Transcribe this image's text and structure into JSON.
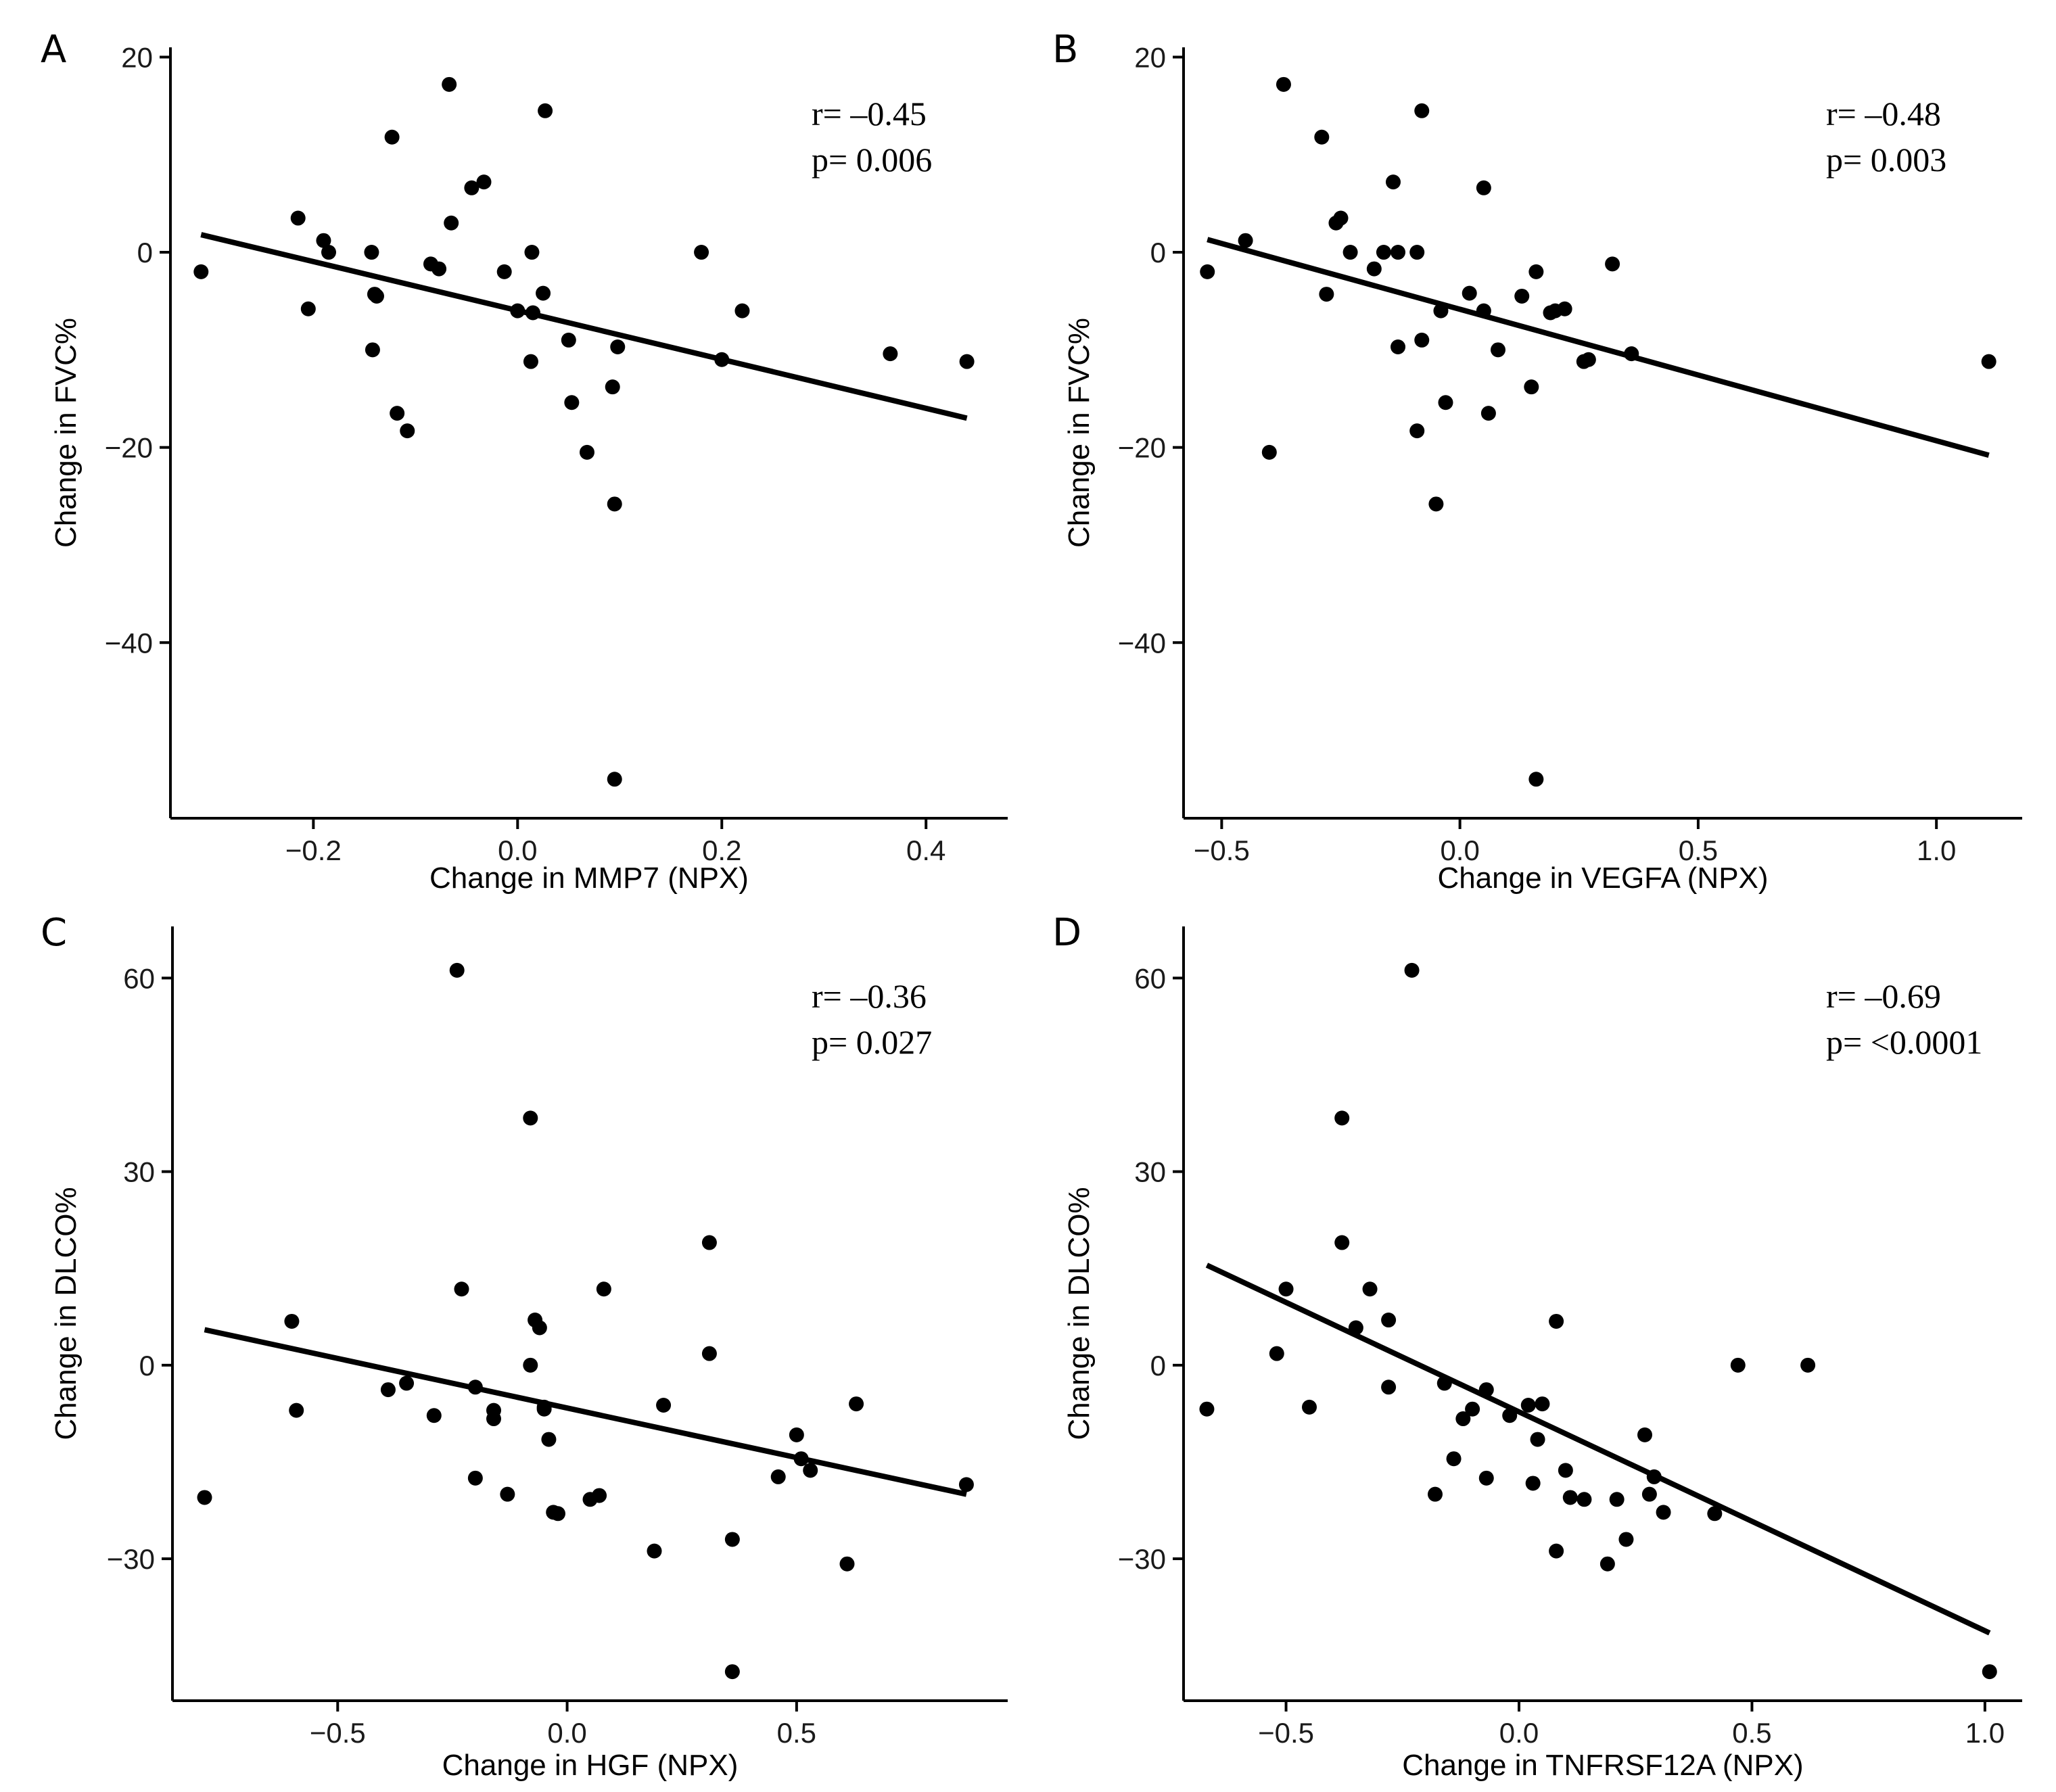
{
  "chart_data": [
    {
      "type": "scatter",
      "label": "A",
      "xlabel": "Change in MMP7 (NPX)",
      "ylabel": "Change in FVC%",
      "xlim": [
        -0.34,
        0.48
      ],
      "ylim": [
        -58,
        21
      ],
      "xticks": [
        -0.2,
        0.0,
        0.2,
        0.4
      ],
      "xtick_labels": [
        "−0.2",
        "0.0",
        "0.2",
        "0.4"
      ],
      "yticks": [
        20,
        0,
        -20,
        -40
      ],
      "ytick_labels": [
        "20",
        "0",
        "−20",
        "−40"
      ],
      "annotation": {
        "r": "r= –0.45",
        "p": "p= 0.006"
      },
      "fit": {
        "x": [
          -0.31,
          0.44
        ],
        "y": [
          1.8,
          -17.0
        ]
      },
      "x": [
        -0.31,
        -0.215,
        -0.205,
        -0.19,
        -0.185,
        -0.143,
        -0.142,
        -0.14,
        -0.138,
        -0.123,
        -0.118,
        -0.108,
        -0.085,
        -0.077,
        -0.067,
        -0.065,
        -0.045,
        -0.033,
        -0.013,
        0.0,
        0.013,
        0.014,
        0.015,
        0.025,
        0.027,
        0.05,
        0.053,
        0.068,
        0.093,
        0.095,
        0.095,
        0.098,
        0.18,
        0.2,
        0.22,
        0.365,
        0.44
      ],
      "y": [
        -2.0,
        3.5,
        -5.8,
        1.2,
        0.0,
        0.0,
        -10.0,
        -4.3,
        -4.5,
        11.8,
        -16.5,
        -18.3,
        -1.2,
        -1.7,
        17.2,
        3.0,
        6.6,
        7.2,
        -2.0,
        -6.0,
        -11.2,
        0.0,
        -6.2,
        -4.2,
        14.5,
        -9.0,
        -15.4,
        -20.5,
        -13.8,
        -25.8,
        -54.0,
        -9.7,
        0.0,
        -11.0,
        -6.0,
        -10.4,
        -11.2
      ]
    },
    {
      "type": "scatter",
      "label": "B",
      "xlabel": "Change in VEGFA (NPX)",
      "ylabel": "Change in FVC%",
      "xlim": [
        -0.58,
        1.18
      ],
      "ylim": [
        -58,
        21
      ],
      "xticks": [
        -0.5,
        0.0,
        0.5,
        1.0
      ],
      "xtick_labels": [
        "−0.5",
        "0.0",
        "0.5",
        "1.0"
      ],
      "yticks": [
        20,
        0,
        -20,
        -40
      ],
      "ytick_labels": [
        "20",
        "0",
        "−20",
        "−40"
      ],
      "annotation": {
        "r": "r= –0.48",
        "p": "p= 0.003"
      },
      "fit": {
        "x": [
          -0.53,
          1.11
        ],
        "y": [
          1.3,
          -20.8
        ]
      },
      "x": [
        -0.53,
        -0.45,
        -0.4,
        -0.37,
        -0.29,
        -0.28,
        -0.26,
        -0.25,
        -0.23,
        -0.18,
        -0.16,
        -0.14,
        -0.13,
        -0.09,
        -0.09,
        -0.08,
        -0.08,
        -0.13,
        -0.05,
        -0.04,
        -0.03,
        0.02,
        0.05,
        0.05,
        0.06,
        0.08,
        0.13,
        0.15,
        0.16,
        0.16,
        0.19,
        0.2,
        0.22,
        0.26,
        0.27,
        0.32,
        0.36,
        1.11
      ],
      "y": [
        -2.0,
        1.2,
        -20.5,
        17.2,
        11.8,
        -4.3,
        3.0,
        3.5,
        0.0,
        -1.7,
        0.0,
        7.2,
        0.0,
        -18.3,
        0.0,
        14.5,
        -9.0,
        -9.7,
        -25.8,
        -6.0,
        -15.4,
        -4.2,
        6.6,
        -6.0,
        -16.5,
        -10.0,
        -4.5,
        -13.8,
        -2.0,
        -54.0,
        -6.2,
        -6.0,
        -5.8,
        -11.2,
        -11.0,
        -1.2,
        -10.4,
        -11.2
      ]
    },
    {
      "type": "scatter",
      "label": "C",
      "xlabel": "Change in HGF (NPX)",
      "ylabel": "Change in DLCO%",
      "xlim": [
        -0.86,
        0.96
      ],
      "ylim": [
        -52,
        68
      ],
      "xticks": [
        -0.5,
        0.0,
        0.5
      ],
      "xtick_labels": [
        "−0.5",
        "0.0",
        "0.5"
      ],
      "yticks": [
        60,
        30,
        0,
        -30
      ],
      "ytick_labels": [
        "60",
        "30",
        "0",
        "−30"
      ],
      "annotation": {
        "r": "r= –0.36",
        "p": "p= 0.027"
      },
      "fit": {
        "x": [
          -0.79,
          0.87
        ],
        "y": [
          5.5,
          -20.0
        ]
      },
      "x": [
        -0.79,
        -0.6,
        -0.59,
        -0.39,
        -0.35,
        -0.29,
        -0.24,
        -0.23,
        -0.2,
        -0.2,
        -0.16,
        -0.16,
        -0.13,
        -0.08,
        -0.08,
        -0.07,
        -0.06,
        -0.05,
        -0.05,
        -0.04,
        -0.03,
        -0.02,
        0.05,
        0.07,
        0.08,
        0.19,
        0.21,
        0.31,
        0.31,
        0.36,
        0.36,
        0.46,
        0.5,
        0.51,
        0.53,
        0.61,
        0.63,
        0.87
      ],
      "y": [
        -20.5,
        6.8,
        -7.0,
        -3.8,
        -2.8,
        -7.8,
        61.2,
        11.8,
        -3.4,
        -17.5,
        -7.0,
        -8.3,
        -20.0,
        38.3,
        0.0,
        7.0,
        5.8,
        -6.8,
        -6.5,
        -11.5,
        -22.8,
        -23.0,
        -20.8,
        -20.2,
        11.8,
        -28.8,
        -6.2,
        19.0,
        1.8,
        -27.0,
        -47.5,
        -17.3,
        -10.8,
        -14.5,
        -16.3,
        -30.8,
        -6.0,
        -18.5
      ]
    },
    {
      "type": "scatter",
      "label": "D",
      "xlabel": "Change in TNFRSF12A (NPX)",
      "ylabel": "Change in DLCO%",
      "xlim": [
        -0.72,
        1.08
      ],
      "ylim": [
        -52,
        68
      ],
      "xticks": [
        -0.5,
        0.0,
        0.5,
        1.0
      ],
      "xtick_labels": [
        "−0.5",
        "0.0",
        "0.5",
        "1.0"
      ],
      "yticks": [
        60,
        30,
        0,
        -30
      ],
      "ytick_labels": [
        "60",
        "30",
        "0",
        "−30"
      ],
      "annotation": {
        "r": "r= –0.69",
        "p": "p= <0.0001"
      },
      "fit": {
        "x": [
          -0.67,
          1.01
        ],
        "y": [
          15.5,
          -41.5
        ]
      },
      "x": [
        -0.67,
        -0.52,
        -0.5,
        -0.45,
        -0.38,
        -0.38,
        -0.35,
        -0.32,
        -0.28,
        -0.28,
        -0.23,
        -0.18,
        -0.16,
        -0.14,
        -0.12,
        -0.1,
        -0.07,
        -0.07,
        -0.02,
        0.02,
        0.03,
        0.04,
        0.05,
        0.08,
        0.08,
        0.1,
        0.11,
        0.14,
        0.19,
        0.21,
        0.23,
        0.27,
        0.28,
        0.29,
        0.31,
        0.42,
        0.47,
        0.62,
        1.01
      ],
      "y": [
        -6.8,
        1.8,
        11.8,
        -6.5,
        38.3,
        19.0,
        5.8,
        11.8,
        7.0,
        -3.4,
        61.2,
        -20.0,
        -2.8,
        -14.5,
        -8.3,
        -6.8,
        -3.8,
        -17.5,
        -7.8,
        -6.2,
        -18.3,
        -11.5,
        -6.0,
        -28.8,
        6.8,
        -16.3,
        -20.5,
        -20.8,
        -30.8,
        -20.8,
        -27.0,
        -10.8,
        -20.0,
        -17.3,
        -22.8,
        -23.0,
        0.0,
        0.0,
        -47.5
      ]
    }
  ]
}
